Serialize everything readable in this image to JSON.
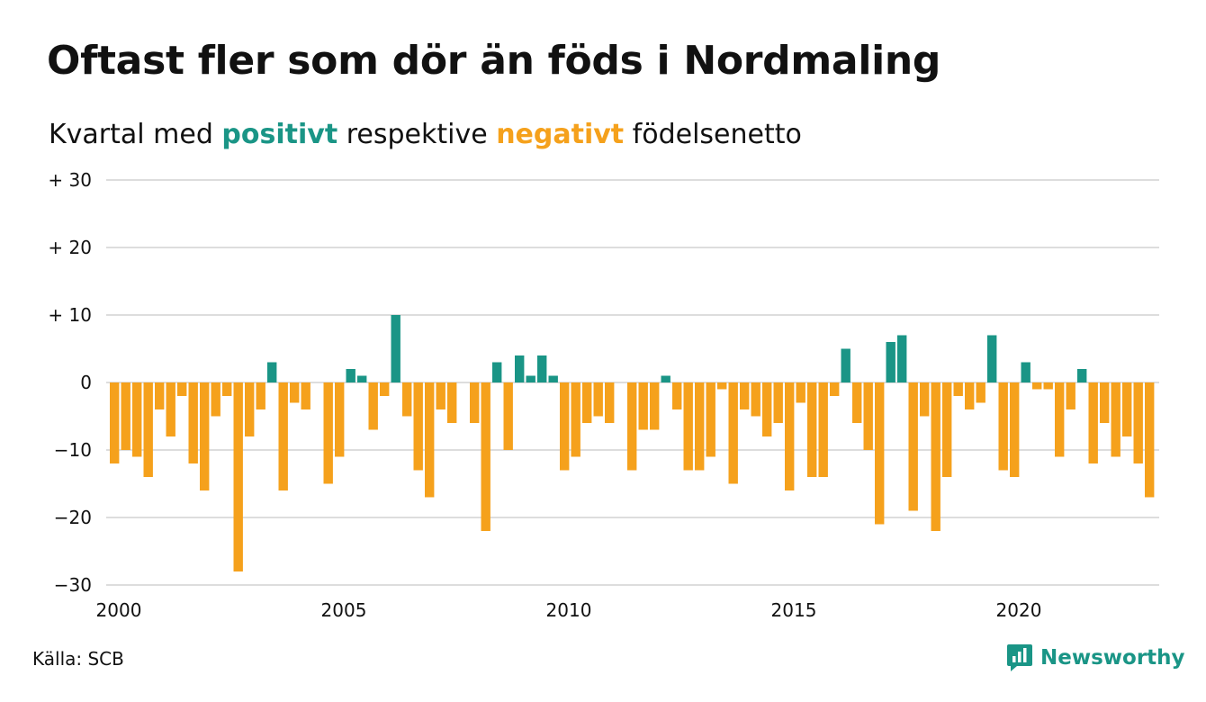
{
  "title": "Oftast fler som dör än föds i Nordmaling",
  "subtitle": {
    "prefix": "Kvartal med ",
    "positive_word": "positivt",
    "middle": " respektive ",
    "negative_word": "negativt",
    "suffix": " födelsenetto"
  },
  "source": "Källa: SCB",
  "brand": "Newsworthy",
  "colors": {
    "positive": "#1a9586",
    "negative": "#f5a11c",
    "grid": "#dddddd",
    "text": "#111111",
    "brand": "#1a9586"
  },
  "chart_data": {
    "type": "bar",
    "x_start_year": 2000,
    "x_step_years": 0.25,
    "ylim": [
      -30,
      30
    ],
    "yticks": [
      {
        "value": 30,
        "label": "+ 30"
      },
      {
        "value": 20,
        "label": "+ 20"
      },
      {
        "value": 10,
        "label": "+ 10"
      },
      {
        "value": 0,
        "label": "0"
      },
      {
        "value": -10,
        "label": "−10"
      },
      {
        "value": -20,
        "label": "−20"
      },
      {
        "value": -30,
        "label": "−30"
      }
    ],
    "xticks": [
      {
        "value": 2000,
        "label": "2000"
      },
      {
        "value": 2005,
        "label": "2005"
      },
      {
        "value": 2010,
        "label": "2010"
      },
      {
        "value": 2015,
        "label": "2015"
      },
      {
        "value": 2020,
        "label": "2020"
      }
    ],
    "grid": true,
    "values": [
      -12,
      -10,
      -11,
      -14,
      -4,
      -8,
      -2,
      -12,
      -16,
      -5,
      -2,
      -28,
      -8,
      -4,
      3,
      -16,
      -3,
      -4,
      0,
      -15,
      -11,
      2,
      1,
      -7,
      -2,
      10,
      -5,
      -13,
      -17,
      -4,
      -6,
      0,
      -6,
      -22,
      3,
      -10,
      4,
      1,
      4,
      1,
      -13,
      -11,
      -6,
      -5,
      -6,
      0,
      -13,
      -7,
      -7,
      1,
      -4,
      -13,
      -13,
      -11,
      -1,
      -15,
      -4,
      -5,
      -8,
      -6,
      -16,
      -3,
      -14,
      -14,
      -2,
      5,
      -6,
      -10,
      -21,
      6,
      7,
      -19,
      -5,
      -22,
      -14,
      -2,
      -4,
      -3,
      7,
      -13,
      -14,
      3,
      -1,
      -1,
      -11,
      -4,
      2,
      -12,
      -6,
      -11,
      -8,
      -12,
      -17
    ]
  }
}
